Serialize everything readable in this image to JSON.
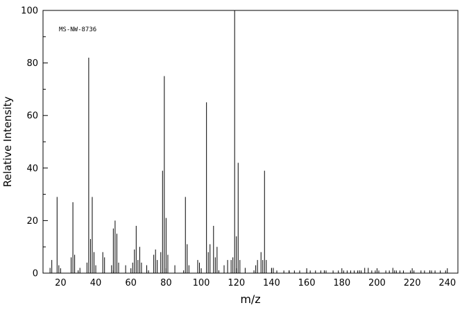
{
  "figure": {
    "background_color": "#ffffff",
    "axis_color": "#000000",
    "peak_color": "#000000"
  },
  "chart_data": {
    "type": "bar",
    "subtype": "mass-spectrum",
    "title": "",
    "xlabel": "m/z",
    "ylabel": "Relative Intensity",
    "annotation": "MS-NW-8736",
    "xlim": [
      10,
      246
    ],
    "ylim": [
      0,
      100
    ],
    "x_major_tick_step": 20,
    "x_minor_tick_step": 10,
    "x_major_ticks": [
      20,
      40,
      60,
      80,
      100,
      120,
      140,
      160,
      180,
      200,
      220,
      240
    ],
    "y_major_ticks": [
      0,
      20,
      40,
      60,
      80,
      100
    ],
    "y_minor_tick_step": 10,
    "grid": false,
    "legend": false,
    "peaks": [
      [
        14,
        2
      ],
      [
        15,
        5
      ],
      [
        18,
        29
      ],
      [
        19,
        3
      ],
      [
        26,
        6
      ],
      [
        27,
        27
      ],
      [
        28,
        7
      ],
      [
        31,
        2
      ],
      [
        35,
        4
      ],
      [
        36,
        82
      ],
      [
        37,
        13
      ],
      [
        38,
        29
      ],
      [
        39,
        8
      ],
      [
        40,
        3
      ],
      [
        44,
        8
      ],
      [
        45,
        6
      ],
      [
        49,
        3
      ],
      [
        50,
        17
      ],
      [
        51,
        20
      ],
      [
        52,
        15
      ],
      [
        53,
        4
      ],
      [
        57,
        3
      ],
      [
        61,
        4
      ],
      [
        62,
        9
      ],
      [
        63,
        18
      ],
      [
        64,
        5
      ],
      [
        65,
        10
      ],
      [
        66,
        4
      ],
      [
        69,
        3
      ],
      [
        73,
        7
      ],
      [
        74,
        9
      ],
      [
        75,
        5
      ],
      [
        77,
        8
      ],
      [
        78,
        39
      ],
      [
        79,
        75
      ],
      [
        80,
        21
      ],
      [
        81,
        7
      ],
      [
        85,
        3
      ],
      [
        91,
        29
      ],
      [
        92,
        11
      ],
      [
        93,
        3
      ],
      [
        98,
        5
      ],
      [
        99,
        4
      ],
      [
        103,
        65
      ],
      [
        104,
        8
      ],
      [
        105,
        11
      ],
      [
        107,
        18
      ],
      [
        108,
        6
      ],
      [
        109,
        10
      ],
      [
        113,
        3
      ],
      [
        115,
        5
      ],
      [
        117,
        5
      ],
      [
        118,
        6
      ],
      [
        119,
        100
      ],
      [
        120,
        14
      ],
      [
        121,
        42
      ],
      [
        122,
        5
      ],
      [
        125,
        2
      ],
      [
        131,
        3
      ],
      [
        132,
        5
      ],
      [
        134,
        8
      ],
      [
        135,
        5
      ],
      [
        136,
        39
      ],
      [
        137,
        5
      ],
      [
        140,
        2
      ],
      [
        141,
        2
      ],
      [
        143,
        1
      ],
      [
        147,
        1
      ],
      [
        150,
        1
      ],
      [
        153,
        1
      ],
      [
        156,
        1
      ],
      [
        160,
        1
      ],
      [
        162,
        1
      ],
      [
        165,
        1
      ],
      [
        168,
        1
      ],
      [
        171,
        1
      ],
      [
        175,
        1
      ],
      [
        178,
        1
      ],
      [
        181,
        1
      ],
      [
        183,
        1
      ],
      [
        185,
        1
      ],
      [
        187,
        1
      ],
      [
        189,
        1
      ],
      [
        191,
        1
      ],
      [
        193,
        2
      ],
      [
        195,
        2
      ],
      [
        197,
        1
      ],
      [
        199,
        1
      ],
      [
        201,
        1
      ],
      [
        205,
        1
      ],
      [
        207,
        1
      ],
      [
        209,
        2
      ],
      [
        211,
        1
      ],
      [
        213,
        1
      ],
      [
        215,
        1
      ],
      [
        219,
        1
      ],
      [
        221,
        1
      ],
      [
        225,
        1
      ],
      [
        227,
        1
      ],
      [
        231,
        1
      ],
      [
        233,
        1
      ],
      [
        236,
        1
      ],
      [
        239,
        1
      ]
    ]
  }
}
